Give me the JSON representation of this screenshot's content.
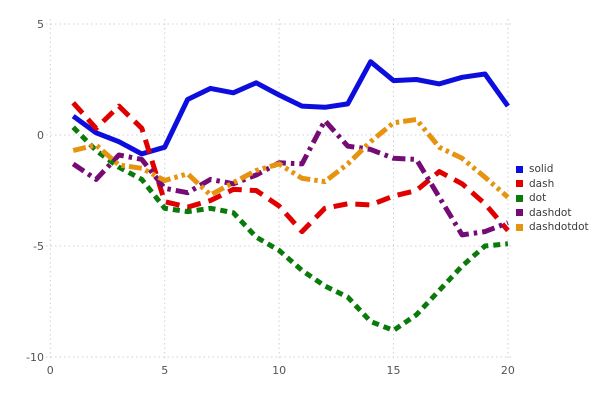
{
  "chart_data": {
    "type": "line",
    "title": "",
    "xlabel": "",
    "ylabel": "",
    "xlim": [
      0,
      20
    ],
    "ylim": [
      -10,
      5
    ],
    "x_ticks": [
      0,
      5,
      10,
      15,
      20
    ],
    "y_ticks": [
      5,
      0,
      -5,
      -10
    ],
    "grid": "dotted",
    "grid_color": "#cfcfd8",
    "tick_color": "#545454",
    "legend_position": "right",
    "x": [
      1,
      2,
      3,
      4,
      5,
      6,
      7,
      8,
      9,
      10,
      11,
      12,
      13,
      14,
      15,
      16,
      17,
      18,
      19,
      20
    ],
    "series": [
      {
        "name": "solid",
        "color": "#0d0ddd",
        "style": "solid",
        "values": [
          0.85,
          0.1,
          -0.3,
          -0.85,
          -0.55,
          1.6,
          2.1,
          1.9,
          2.35,
          1.8,
          1.3,
          1.25,
          1.4,
          3.3,
          2.45,
          2.5,
          2.3,
          2.6,
          2.75,
          1.3
        ]
      },
      {
        "name": "dash",
        "color": "#e00000",
        "style": "dash",
        "values": [
          1.45,
          0.3,
          1.3,
          0.3,
          -3.0,
          -3.25,
          -2.95,
          -2.45,
          -2.5,
          -3.2,
          -4.35,
          -3.3,
          -3.1,
          -3.15,
          -2.75,
          -2.5,
          -1.65,
          -2.2,
          -3.1,
          -4.3
        ]
      },
      {
        "name": "dot",
        "color": "#0a7a0a",
        "style": "dot",
        "values": [
          0.35,
          -0.7,
          -1.45,
          -2.0,
          -3.3,
          -3.45,
          -3.3,
          -3.5,
          -4.6,
          -5.2,
          -6.1,
          -6.8,
          -7.3,
          -8.4,
          -8.8,
          -8.1,
          -7.0,
          -5.9,
          -5.0,
          -4.9
        ]
      },
      {
        "name": "dashdot",
        "color": "#750c75",
        "style": "dashdot",
        "values": [
          -1.3,
          -2.0,
          -0.9,
          -1.1,
          -2.4,
          -2.6,
          -2.0,
          -2.2,
          -1.8,
          -1.25,
          -1.3,
          0.65,
          -0.5,
          -0.65,
          -1.05,
          -1.1,
          -2.8,
          -4.5,
          -4.35,
          -3.95
        ]
      },
      {
        "name": "dashdotdot",
        "color": "#e69410",
        "style": "dashdotdot",
        "values": [
          -0.7,
          -0.45,
          -1.35,
          -1.5,
          -2.05,
          -1.75,
          -2.7,
          -2.15,
          -1.6,
          -1.3,
          -1.95,
          -2.1,
          -1.3,
          -0.3,
          0.55,
          0.7,
          -0.55,
          -1.05,
          -1.9,
          -2.8
        ]
      }
    ]
  }
}
